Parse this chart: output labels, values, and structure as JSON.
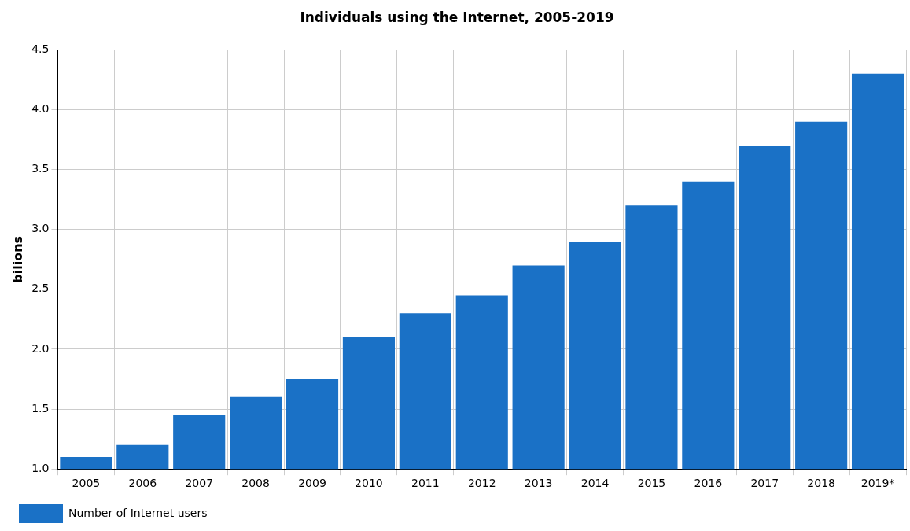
{
  "chart_data": {
    "type": "bar",
    "title": "Individuals using the Internet, 2005-2019",
    "ylabel": "bilions",
    "categories": [
      "2005",
      "2006",
      "2007",
      "2008",
      "2009",
      "2010",
      "2011",
      "2012",
      "2013",
      "2014",
      "2015",
      "2016",
      "2017",
      "2018",
      "2019*"
    ],
    "series": [
      {
        "name": "Number of Internet users",
        "color": "#1a71c6",
        "values": [
          1.1,
          1.2,
          1.45,
          1.6,
          1.75,
          2.1,
          2.3,
          2.45,
          2.7,
          2.9,
          3.2,
          3.4,
          3.7,
          3.9,
          4.3
        ]
      }
    ],
    "ylim": [
      1.0,
      4.5
    ],
    "yticks": [
      {
        "value": 1,
        "label": "1.0"
      },
      {
        "value": 1.5,
        "label": "1.5"
      },
      {
        "value": 2,
        "label": "2.0"
      },
      {
        "value": 2.5,
        "label": "2.5"
      },
      {
        "value": 3,
        "label": "3.0"
      },
      {
        "value": 3.5,
        "label": "3.5"
      },
      {
        "value": 4,
        "label": "4.0"
      },
      {
        "value": 4.5,
        "label": "4.5"
      }
    ],
    "grid": true,
    "legend": "bottom left"
  }
}
